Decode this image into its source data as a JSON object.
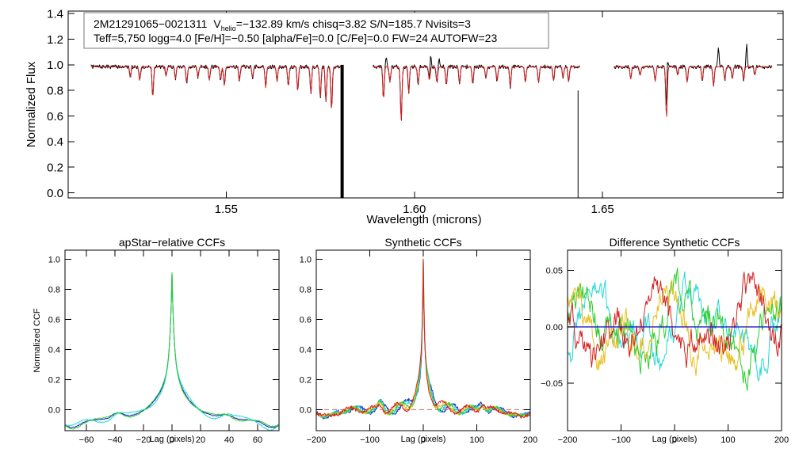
{
  "chart_data": [
    {
      "id": "spectrum",
      "type": "line",
      "title": "",
      "xlabel": "Wavelength (microns)",
      "ylabel": "Normalized Flux",
      "xlim": [
        1.508,
        1.698
      ],
      "ylim": [
        -0.04,
        1.42
      ],
      "xticks": [
        1.55,
        1.6,
        1.65
      ],
      "xtick_labels": [
        "1.55",
        "1.60",
        "1.65"
      ],
      "yticks": [
        0.0,
        0.2,
        0.4,
        0.6,
        0.8,
        1.0,
        1.2,
        1.4
      ],
      "ytick_labels": [
        "0.0",
        "0.2",
        "0.4",
        "0.6",
        "0.8",
        "1.0",
        "1.2",
        "1.4"
      ],
      "legend": {
        "line1_id": "2M21291065−0021311",
        "line1_v": "V",
        "line1_vsub": "helio",
        "line1_rest": "=−132.89 km/s  chisq=3.82  S/N=185.7  Nvisits=3",
        "line2": "Teff=5,750 logg=4.0 [Fe/H]=−0.50 [alpha/Fe]=0.0 [C/Fe]=0.0 FW=24 AUTOFW=23"
      },
      "series": [
        {
          "name": "observed",
          "color": "#000000",
          "segments": [
            [
              1.514,
              1.581
            ],
            [
              1.589,
              1.644
            ],
            [
              1.653,
              1.695
            ]
          ],
          "continuum": 0.985,
          "lines": [
            [
              1.5245,
              0.9
            ],
            [
              1.527,
              0.88
            ],
            [
              1.5305,
              0.75
            ],
            [
              1.534,
              0.91
            ],
            [
              1.5365,
              0.89
            ],
            [
              1.5395,
              0.86
            ],
            [
              1.5425,
              0.9
            ],
            [
              1.5455,
              0.88
            ],
            [
              1.5485,
              0.88
            ],
            [
              1.5495,
              0.84
            ],
            [
              1.5535,
              0.88
            ],
            [
              1.557,
              0.9
            ],
            [
              1.5605,
              0.82
            ],
            [
              1.5635,
              0.87
            ],
            [
              1.5665,
              0.83
            ],
            [
              1.569,
              0.8
            ],
            [
              1.5725,
              0.78
            ],
            [
              1.575,
              0.74
            ],
            [
              1.5765,
              0.71
            ],
            [
              1.578,
              0.65
            ],
            [
              1.5918,
              0.73
            ],
            [
              1.5935,
              0.86
            ],
            [
              1.5965,
              0.56
            ],
            [
              1.5985,
              0.78
            ],
            [
              1.601,
              0.85
            ],
            [
              1.604,
              0.88
            ],
            [
              1.606,
              0.86
            ],
            [
              1.6085,
              0.84
            ],
            [
              1.612,
              0.86
            ],
            [
              1.6155,
              0.85
            ],
            [
              1.619,
              0.9
            ],
            [
              1.622,
              0.87
            ],
            [
              1.6255,
              0.83
            ],
            [
              1.6295,
              0.86
            ],
            [
              1.633,
              0.86
            ],
            [
              1.637,
              0.88
            ],
            [
              1.6395,
              0.9
            ],
            [
              1.641,
              0.86
            ],
            [
              1.6575,
              0.89
            ],
            [
              1.66,
              0.92
            ],
            [
              1.664,
              0.87
            ],
            [
              1.667,
              0.58
            ],
            [
              1.67,
              0.92
            ],
            [
              1.6725,
              0.86
            ],
            [
              1.6765,
              0.87
            ],
            [
              1.6795,
              0.84
            ],
            [
              1.6825,
              0.88
            ],
            [
              1.6845,
              0.89
            ],
            [
              1.6875,
              0.88
            ],
            [
              1.6905,
              0.92
            ]
          ],
          "spikes": [
            [
              1.6672,
              1.23
            ],
            [
              1.6808,
              1.14
            ],
            [
              1.6883,
              1.17
            ],
            [
              1.6043,
              1.11
            ],
            [
              1.6065,
              1.05
            ],
            [
              1.5925,
              1.05
            ]
          ]
        },
        {
          "name": "model",
          "color": "#d42020"
        }
      ],
      "gaps": [
        {
          "name": "gap-bar-thick",
          "x": 1.5808,
          "y_top": 1.0,
          "color": "#000000"
        },
        {
          "name": "gap-bar-thin",
          "x": 1.6435,
          "y_top": 0.8,
          "color": "#000000"
        }
      ]
    },
    {
      "id": "apstar",
      "type": "line",
      "title": "apStar−relative CCFs",
      "xlabel": "Lag (pixels)",
      "ylabel": "Normalized CCF",
      "xlim": [
        -75,
        75
      ],
      "ylim": [
        -0.14,
        1.06
      ],
      "xticks": [
        -60,
        -40,
        -20,
        0,
        20,
        40,
        60
      ],
      "xtick_labels": [
        "−60",
        "−40",
        "−20",
        "0",
        "20",
        "40",
        "60"
      ],
      "yticks": [
        0.0,
        0.2,
        0.4,
        0.6,
        0.8,
        1.0
      ],
      "ytick_labels": [
        "0.0",
        "0.2",
        "0.4",
        "0.6",
        "0.8",
        "1.0"
      ],
      "series": [
        {
          "name": "visit-1",
          "color": "#1e1ec8"
        },
        {
          "name": "visit-2",
          "color": "#22d8d8"
        },
        {
          "name": "visit-3",
          "color": "#2bcc2b"
        }
      ]
    },
    {
      "id": "synthetic",
      "type": "line",
      "title": "Synthetic CCFs",
      "xlabel": "Lag (pixels)",
      "ylabel": "",
      "xlim": [
        -200,
        200
      ],
      "ylim": [
        -0.14,
        1.06
      ],
      "xticks": [
        -200,
        -100,
        0,
        100,
        200
      ],
      "xtick_labels": [
        "−200",
        "−100",
        "0",
        "100",
        "200"
      ],
      "yticks": [
        0.0,
        0.2,
        0.4,
        0.6,
        0.8,
        1.0
      ],
      "ytick_labels": [
        "0.0",
        "0.2",
        "0.4",
        "0.6",
        "0.8",
        "1.0"
      ],
      "series": [
        {
          "name": "visit-1",
          "color": "#1e1ec8"
        },
        {
          "name": "visit-2",
          "color": "#22d8d8"
        },
        {
          "name": "visit-3",
          "color": "#2bcc2b"
        },
        {
          "name": "visit-4",
          "color": "#e8c020"
        },
        {
          "name": "visit-5",
          "color": "#d42020"
        },
        {
          "name": "zero-ref",
          "color": "#d47070"
        }
      ]
    },
    {
      "id": "difference",
      "type": "line",
      "title": "Difference Synthetic CCFs",
      "xlabel": "Lag (pixels)",
      "ylabel": "",
      "xlim": [
        -200,
        200
      ],
      "ylim": [
        -0.092,
        0.068
      ],
      "xticks": [
        -200,
        -100,
        0,
        100,
        200
      ],
      "xtick_labels": [
        "−200",
        "−100",
        "0",
        "100",
        "200"
      ],
      "yticks": [
        -0.05,
        0.0,
        0.05
      ],
      "ytick_labels": [
        "−0.05",
        "0.00",
        "0.05"
      ],
      "series": [
        {
          "name": "visit-1",
          "color": "#22d8d8"
        },
        {
          "name": "visit-2",
          "color": "#2bcc2b"
        },
        {
          "name": "visit-3",
          "color": "#e8c020"
        },
        {
          "name": "visit-4",
          "color": "#d42020"
        },
        {
          "name": "zero-line",
          "color": "#1e1ec8"
        }
      ]
    }
  ]
}
